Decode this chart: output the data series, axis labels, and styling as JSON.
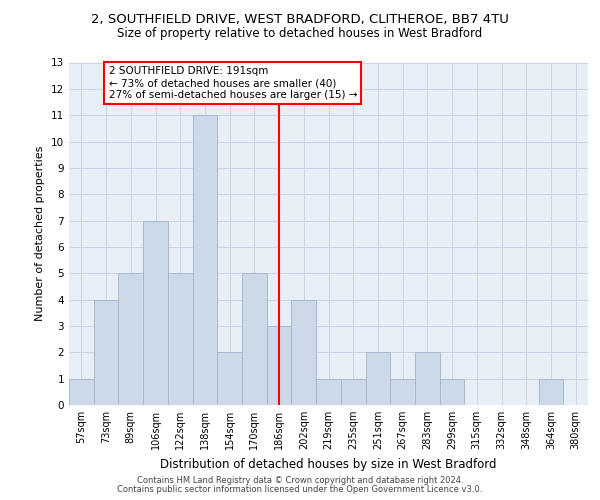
{
  "title_line1": "2, SOUTHFIELD DRIVE, WEST BRADFORD, CLITHEROE, BB7 4TU",
  "title_line2": "Size of property relative to detached houses in West Bradford",
  "xlabel": "Distribution of detached houses by size in West Bradford",
  "ylabel": "Number of detached properties",
  "footer_line1": "Contains HM Land Registry data © Crown copyright and database right 2024.",
  "footer_line2": "Contains public sector information licensed under the Open Government Licence v3.0.",
  "annotation_line1": "2 SOUTHFIELD DRIVE: 191sqm",
  "annotation_line2": "← 73% of detached houses are smaller (40)",
  "annotation_line3": "27% of semi-detached houses are larger (15) →",
  "bar_labels": [
    "57sqm",
    "73sqm",
    "89sqm",
    "106sqm",
    "122sqm",
    "138sqm",
    "154sqm",
    "170sqm",
    "186sqm",
    "202sqm",
    "219sqm",
    "235sqm",
    "251sqm",
    "267sqm",
    "283sqm",
    "299sqm",
    "315sqm",
    "332sqm",
    "348sqm",
    "364sqm",
    "380sqm"
  ],
  "bar_values": [
    1,
    4,
    5,
    7,
    5,
    11,
    2,
    5,
    3,
    4,
    1,
    1,
    2,
    1,
    2,
    1,
    0,
    0,
    0,
    1,
    0
  ],
  "bar_color": "#ccd9e8",
  "bar_edge_color": "#a0b4cc",
  "reference_line_index": 8,
  "ylim": [
    0,
    13
  ],
  "grid_color": "#c8d4e4",
  "plot_bg_color": "#e8eef6",
  "title1_fontsize": 9.5,
  "title2_fontsize": 8.5,
  "ylabel_fontsize": 8,
  "xlabel_fontsize": 8.5,
  "tick_fontsize": 7,
  "footer_fontsize": 6,
  "annotation_fontsize": 7.5
}
